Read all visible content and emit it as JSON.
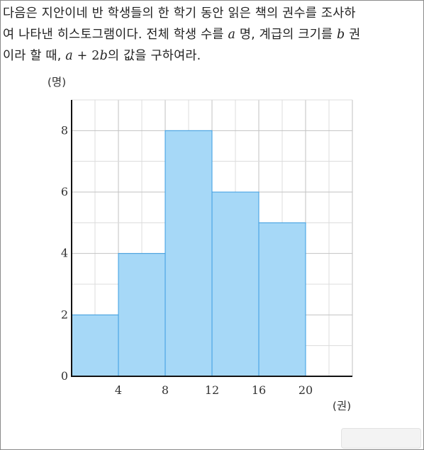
{
  "question": {
    "line1": "다음은 지안이네 반 학생들의 한 학기 동안 읽은 책의 권수를 조사하",
    "line2_a": "여 나타낸 히스토그램이다. 전체 학생 수를 ",
    "var_a": "a",
    "line2_b": " 명, 계급의 크기를 ",
    "var_b": "b",
    "line2_c": " 권",
    "line3_a": "이라 할 때, ",
    "expr_a": "a",
    "expr_op": " + 2",
    "expr_b": "b",
    "line3_b": "의 값을 구하여라."
  },
  "chart_data": {
    "type": "bar",
    "subtype": "histogram",
    "ylabel": "(명)",
    "xlabel": "(권)",
    "bins": [
      [
        0,
        4
      ],
      [
        4,
        8
      ],
      [
        8,
        12
      ],
      [
        12,
        16
      ],
      [
        16,
        20
      ]
    ],
    "values": [
      2,
      4,
      8,
      6,
      5
    ],
    "x_ticks": [
      "4",
      "8",
      "12",
      "16",
      "20"
    ],
    "y_ticks": [
      "0",
      "2",
      "4",
      "6",
      "8"
    ],
    "xlim": [
      0,
      24
    ],
    "ylim": [
      0,
      9
    ],
    "grid": true,
    "bar_color": "#a6d8f7",
    "bar_edge_color": "#3b9de0"
  }
}
